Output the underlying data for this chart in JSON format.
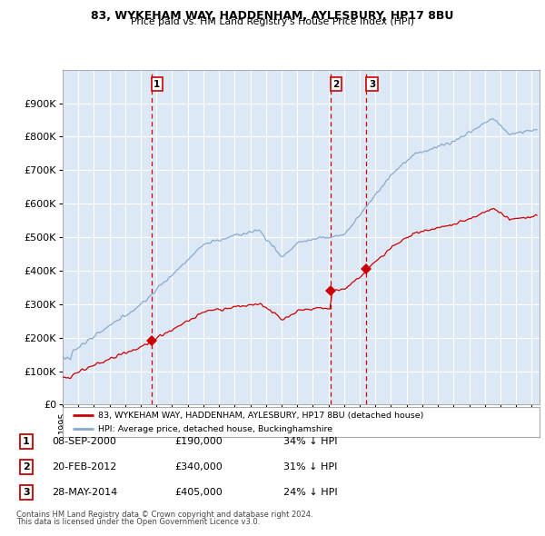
{
  "title1": "83, WYKEHAM WAY, HADDENHAM, AYLESBURY, HP17 8BU",
  "title2": "Price paid vs. HM Land Registry's House Price Index (HPI)",
  "sale_labels": [
    "1",
    "2",
    "3"
  ],
  "sale_annotations": [
    "08-SEP-2000",
    "20-FEB-2012",
    "28-MAY-2014"
  ],
  "sale_price_labels": [
    "£190,000",
    "£340,000",
    "£405,000"
  ],
  "sale_hpi_labels": [
    "34% ↓ HPI",
    "31% ↓ HPI",
    "24% ↓ HPI"
  ],
  "legend_line1": "83, WYKEHAM WAY, HADDENHAM, AYLESBURY, HP17 8BU (detached house)",
  "legend_line2": "HPI: Average price, detached house, Buckinghamshire",
  "footer1": "Contains HM Land Registry data © Crown copyright and database right 2024.",
  "footer2": "This data is licensed under the Open Government Licence v3.0.",
  "line_color_price": "#cc0000",
  "line_color_hpi": "#88aacc",
  "marker_color": "#cc0000",
  "dashed_line_color": "#cc0000",
  "plot_bg_color": "#dce8f5",
  "grid_color": "#ffffff",
  "ylim": [
    0,
    1000000
  ],
  "xlim_start": 1995.0,
  "xlim_end": 2025.5,
  "sale_times": [
    2000.667,
    2012.125,
    2014.417
  ],
  "sale_prices": [
    190000,
    340000,
    405000
  ]
}
